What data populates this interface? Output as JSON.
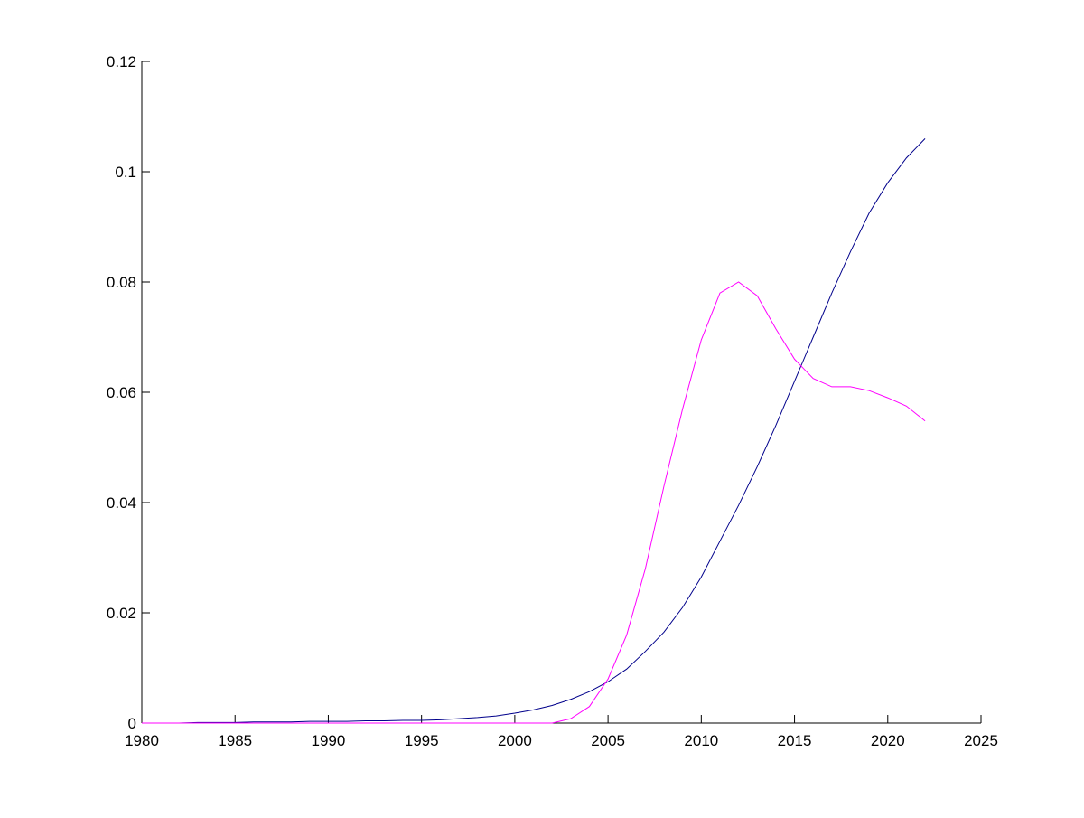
{
  "chart_data": {
    "type": "line",
    "x": [
      1980,
      1981,
      1982,
      1983,
      1984,
      1985,
      1986,
      1987,
      1988,
      1989,
      1990,
      1991,
      1992,
      1993,
      1994,
      1995,
      1996,
      1997,
      1998,
      1999,
      2000,
      2001,
      2002,
      2003,
      2004,
      2005,
      2006,
      2007,
      2008,
      2009,
      2010,
      2011,
      2012,
      2013,
      2014,
      2015,
      2016,
      2017,
      2018,
      2019,
      2020,
      2021,
      2022
    ],
    "series": [
      {
        "color": "#00008b",
        "values": [
          0,
          0,
          0,
          0.0001,
          0.0001,
          0.0001,
          0.0002,
          0.0002,
          0.0002,
          0.0003,
          0.0003,
          0.0003,
          0.0004,
          0.0004,
          0.0005,
          0.0005,
          0.0006,
          0.0008,
          0.001,
          0.0013,
          0.0018,
          0.0024,
          0.0032,
          0.0043,
          0.0057,
          0.0075,
          0.0098,
          0.013,
          0.0165,
          0.021,
          0.0265,
          0.033,
          0.0395,
          0.0465,
          0.054,
          0.062,
          0.07,
          0.078,
          0.0855,
          0.0925,
          0.098,
          0.1025,
          0.106
        ]
      },
      {
        "color": "#ff00ff",
        "values": [
          0,
          0,
          0,
          0,
          0,
          0,
          0,
          0,
          0,
          0,
          0,
          0,
          0,
          0,
          0,
          0,
          0,
          0,
          0,
          0,
          0,
          0,
          0,
          0.0008,
          0.003,
          0.008,
          0.016,
          0.028,
          0.043,
          0.057,
          0.0695,
          0.078,
          0.08,
          0.0775,
          0.0715,
          0.066,
          0.0625,
          0.061,
          0.061,
          0.0603,
          0.059,
          0.0575,
          0.0548
        ]
      }
    ],
    "xlim": [
      1980,
      2025
    ],
    "xticks": [
      1980,
      1985,
      1990,
      1995,
      2000,
      2005,
      2010,
      2015,
      2020,
      2025
    ],
    "ylim": [
      0,
      0.12
    ],
    "yticks": [
      0,
      0.02,
      0.04,
      0.06,
      0.08,
      0.1,
      0.12
    ]
  }
}
